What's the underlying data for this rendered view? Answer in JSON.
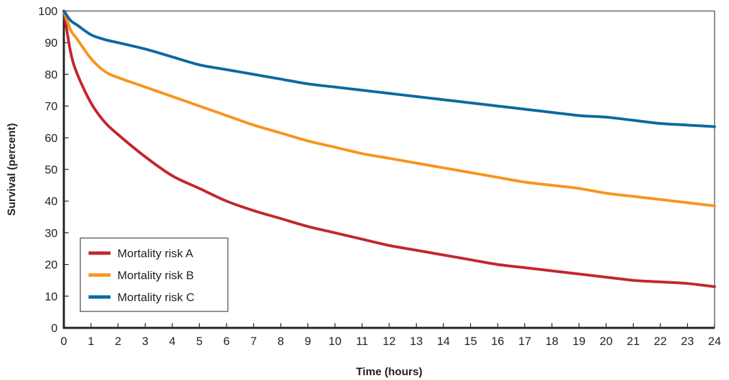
{
  "chart_data": {
    "type": "line",
    "title": "",
    "xlabel": "Time (hours)",
    "ylabel": "Survival (percent)",
    "xlim": [
      0,
      24
    ],
    "ylim": [
      0,
      100
    ],
    "x_ticks": [
      "0",
      "1",
      "2",
      "3",
      "4",
      "5",
      "6",
      "7",
      "8",
      "9",
      "10",
      "11",
      "12",
      "13",
      "14",
      "15",
      "16",
      "17",
      "18",
      "19",
      "20",
      "21",
      "22",
      "23",
      "24"
    ],
    "y_ticks": [
      "0",
      "10",
      "20",
      "30",
      "40",
      "50",
      "60",
      "70",
      "80",
      "90",
      "100"
    ],
    "grid": false,
    "legend_position": "bottom-left",
    "x": [
      0,
      0.25,
      0.5,
      1,
      1.5,
      2,
      3,
      4,
      5,
      6,
      7,
      8,
      9,
      10,
      11,
      12,
      13,
      14,
      15,
      16,
      17,
      18,
      19,
      20,
      21,
      22,
      23,
      24
    ],
    "series": [
      {
        "name": "Mortality risk A",
        "color": "#c1272d",
        "values": [
          100,
          87,
          80,
          71,
          65,
          61,
          54,
          48,
          44,
          40,
          37,
          34.5,
          32,
          30,
          28,
          26,
          24.5,
          23,
          21.5,
          20,
          19,
          18,
          17,
          16,
          15,
          14.5,
          14,
          13
        ]
      },
      {
        "name": "Mortality risk B",
        "color": "#f7941d",
        "values": [
          100,
          94,
          91,
          85,
          81,
          79,
          76,
          73,
          70,
          67,
          64,
          61.5,
          59,
          57,
          55,
          53.5,
          52,
          50.5,
          49,
          47.5,
          46,
          45,
          44,
          42.5,
          41.5,
          40.5,
          39.5,
          38.5
        ]
      },
      {
        "name": "Mortality risk C",
        "color": "#0a6aa1",
        "values": [
          100,
          97,
          95.5,
          92.5,
          91,
          90,
          88,
          85.5,
          83,
          81.5,
          80,
          78.5,
          77,
          76,
          75,
          74,
          73,
          72,
          71,
          70,
          69,
          68,
          67,
          66.5,
          65.5,
          64.5,
          64,
          63.5
        ]
      }
    ]
  }
}
